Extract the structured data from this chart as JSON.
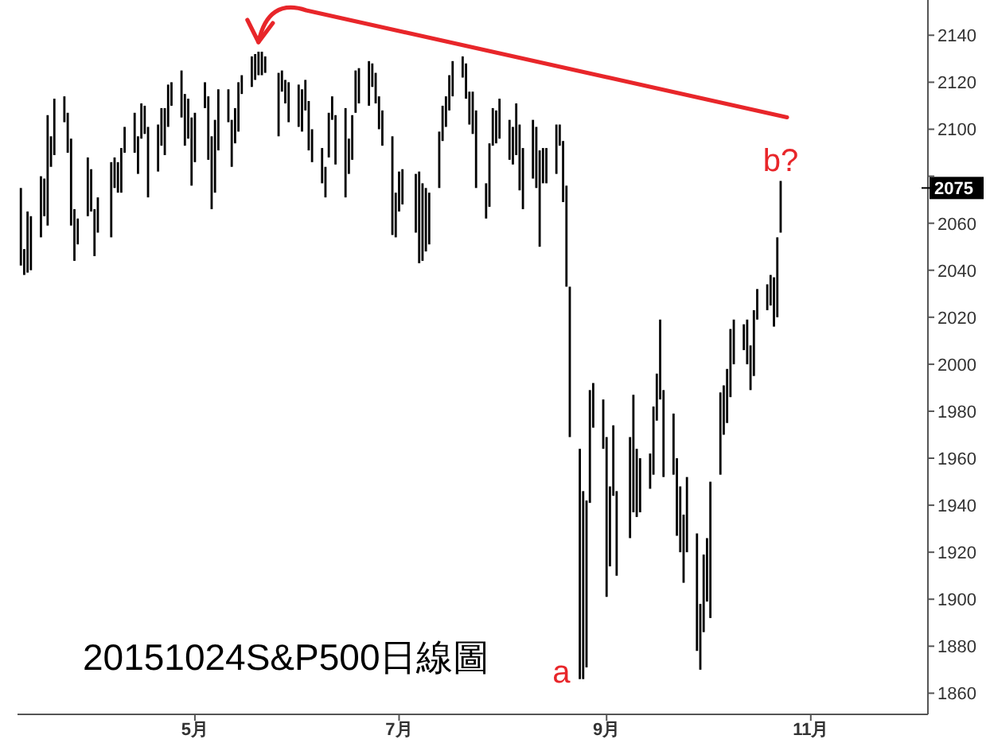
{
  "chart_data": {
    "type": "bar",
    "title": "20151024S&P500日線圖",
    "color": "#000000",
    "x": [
      "--03-10",
      "--03-11",
      "--03-12",
      "--03-13",
      "--03-16",
      "--03-17",
      "--03-18",
      "--03-19",
      "--03-20",
      "--03-23",
      "--03-24",
      "--03-25",
      "--03-26",
      "--03-27",
      "--03-30",
      "--03-31",
      "--04-01",
      "--04-02",
      "--04-06",
      "--04-07",
      "--04-08",
      "--04-09",
      "--04-10",
      "--04-13",
      "--04-14",
      "--04-15",
      "--04-16",
      "--04-17",
      "--04-20",
      "--04-21",
      "--04-22",
      "--04-23",
      "--04-24",
      "--04-27",
      "--04-28",
      "--04-29",
      "--04-30",
      "--05-01",
      "--05-04",
      "--05-05",
      "--05-06",
      "--05-07",
      "--05-08",
      "--05-11",
      "--05-12",
      "--05-13",
      "--05-14",
      "--05-15",
      "--05-18",
      "--05-19",
      "--05-20",
      "--05-21",
      "--05-22",
      "--05-26",
      "--05-27",
      "--05-28",
      "--05-29",
      "--06-01",
      "--06-02",
      "--06-03",
      "--06-04",
      "--06-05",
      "--06-08",
      "--06-09",
      "--06-10",
      "--06-11",
      "--06-12",
      "--06-15",
      "--06-16",
      "--06-17",
      "--06-18",
      "--06-19",
      "--06-22",
      "--06-23",
      "--06-24",
      "--06-25",
      "--06-26",
      "--06-29",
      "--06-30",
      "--07-01",
      "--07-02",
      "--07-06",
      "--07-07",
      "--07-08",
      "--07-09",
      "--07-10",
      "--07-13",
      "--07-14",
      "--07-15",
      "--07-16",
      "--07-17",
      "--07-20",
      "--07-21",
      "--07-22",
      "--07-23",
      "--07-24",
      "--07-27",
      "--07-28",
      "--07-29",
      "--07-30",
      "--07-31",
      "--08-03",
      "--08-04",
      "--08-05",
      "--08-06",
      "--08-07",
      "--08-10",
      "--08-11",
      "--08-12",
      "--08-13",
      "--08-14",
      "--08-17",
      "--08-18",
      "--08-19",
      "--08-20",
      "--08-21",
      "--08-24",
      "--08-25",
      "--08-26",
      "--08-27",
      "--08-28",
      "--08-31",
      "--09-01",
      "--09-02",
      "--09-03",
      "--09-04",
      "--09-08",
      "--09-09",
      "--09-10",
      "--09-11",
      "--09-14",
      "--09-15",
      "--09-16",
      "--09-17",
      "--09-18",
      "--09-21",
      "--09-22",
      "--09-23",
      "--09-24",
      "--09-25",
      "--09-28",
      "--09-29",
      "--09-30",
      "--10-01",
      "--10-02",
      "--10-05",
      "--10-06",
      "--10-07",
      "--10-08",
      "--10-09",
      "--10-12",
      "--10-13",
      "--10-14",
      "--10-15",
      "--10-16",
      "--10-19",
      "--10-20",
      "--10-21",
      "--10-22",
      "--10-23"
    ],
    "base": [
      2042,
      2038,
      2039,
      2040,
      2054,
      2063,
      2059,
      2084,
      2089,
      2103,
      2090,
      2059,
      2044,
      2051,
      2063,
      2065,
      2046,
      2056,
      2054,
      2075,
      2073,
      2073,
      2090,
      2090,
      2081,
      2096,
      2098,
      2071,
      2082,
      2093,
      2089,
      2101,
      2110,
      2105,
      2093,
      2096,
      2076,
      2086,
      2109,
      2087,
      2066,
      2073,
      2091,
      2103,
      2084,
      2094,
      2099,
      2115,
      2118,
      2121,
      2123,
      2123,
      2124,
      2097,
      2116,
      2111,
      2103,
      2101,
      2099,
      2108,
      2091,
      2086,
      2077,
      2071,
      2088,
      2104,
      2085,
      2071,
      2081,
      2087,
      2107,
      2111,
      2110,
      2118,
      2111,
      2100,
      2093,
      2055,
      2054,
      2065,
      2068,
      2056,
      2043,
      2044,
      2048,
      2051,
      2075,
      2095,
      2101,
      2108,
      2114,
      2122,
      2113,
      2102,
      2098,
      2075,
      2062,
      2067,
      2093,
      2094,
      2096,
      2087,
      2085,
      2089,
      2074,
      2066,
      2079,
      2075,
      2050,
      2077,
      2077,
      2081,
      2093,
      2069,
      2033,
      1969,
      1866,
      1866,
      1871,
      1941,
      1973,
      1964,
      1901,
      1914,
      1944,
      1910,
      1926,
      1937,
      1935,
      1937,
      1947,
      1953,
      1976,
      1985,
      1952,
      1953,
      1927,
      1920,
      1907,
      1920,
      1878,
      1870,
      1886,
      1899,
      1892,
      1953,
      1970,
      1975,
      1986,
      2000,
      2006,
      2000,
      1989,
      1995,
      2019,
      2023,
      2025,
      2016,
      2020,
      2056
    ],
    "values": [
      33,
      11,
      26,
      23,
      26,
      16,
      47,
      13,
      24,
      11,
      17,
      37,
      22,
      11,
      25,
      18,
      20,
      15,
      32,
      13,
      13,
      19,
      11,
      17,
      16,
      15,
      12,
      30,
      20,
      16,
      20,
      18,
      10,
      20,
      22,
      17,
      29,
      21,
      11,
      27,
      31,
      31,
      26,
      14,
      20,
      15,
      21,
      8,
      13,
      11,
      10,
      10,
      7,
      27,
      9,
      10,
      17,
      18,
      18,
      13,
      21,
      14,
      15,
      13,
      19,
      10,
      21,
      38,
      15,
      19,
      18,
      15,
      19,
      10,
      13,
      14,
      15,
      42,
      19,
      17,
      15,
      25,
      39,
      33,
      27,
      22,
      24,
      15,
      13,
      15,
      15,
      9,
      15,
      14,
      18,
      33,
      15,
      27,
      16,
      14,
      17,
      17,
      16,
      22,
      28,
      26,
      25,
      26,
      41,
      15,
      15,
      21,
      9,
      26,
      43,
      64,
      98,
      80,
      71,
      48,
      19,
      21,
      68,
      34,
      30,
      36,
      43,
      50,
      29,
      23,
      15,
      29,
      20,
      34,
      37,
      26,
      33,
      28,
      29,
      32,
      50,
      28,
      33,
      27,
      58,
      35,
      21,
      23,
      29,
      19,
      11,
      19,
      19,
      28,
      13,
      11,
      13,
      21,
      34,
      22
    ],
    "xlim": [
      "--03-09",
      "--12-06"
    ],
    "ylim": [
      1851,
      2155
    ],
    "xticks": [
      {
        "value": "--05-01",
        "label": "5月"
      },
      {
        "value": "--07-01",
        "label": "7月"
      },
      {
        "value": "--09-01",
        "label": "9月"
      },
      {
        "value": "--11-01",
        "label": "11月"
      }
    ],
    "yticks": [
      1860,
      1880,
      1900,
      1920,
      1940,
      1960,
      1980,
      2000,
      2020,
      2040,
      2060,
      {
        "value": 2075,
        "label": "2075"
      },
      {
        "value": 2080,
        "label": null
      },
      2100,
      2120,
      2140
    ],
    "annotations": [
      {
        "text": "a",
        "x": "--08-24",
        "y": 1866
      },
      {
        "text": "b?",
        "x": "--10-23",
        "y": 2078
      }
    ]
  }
}
